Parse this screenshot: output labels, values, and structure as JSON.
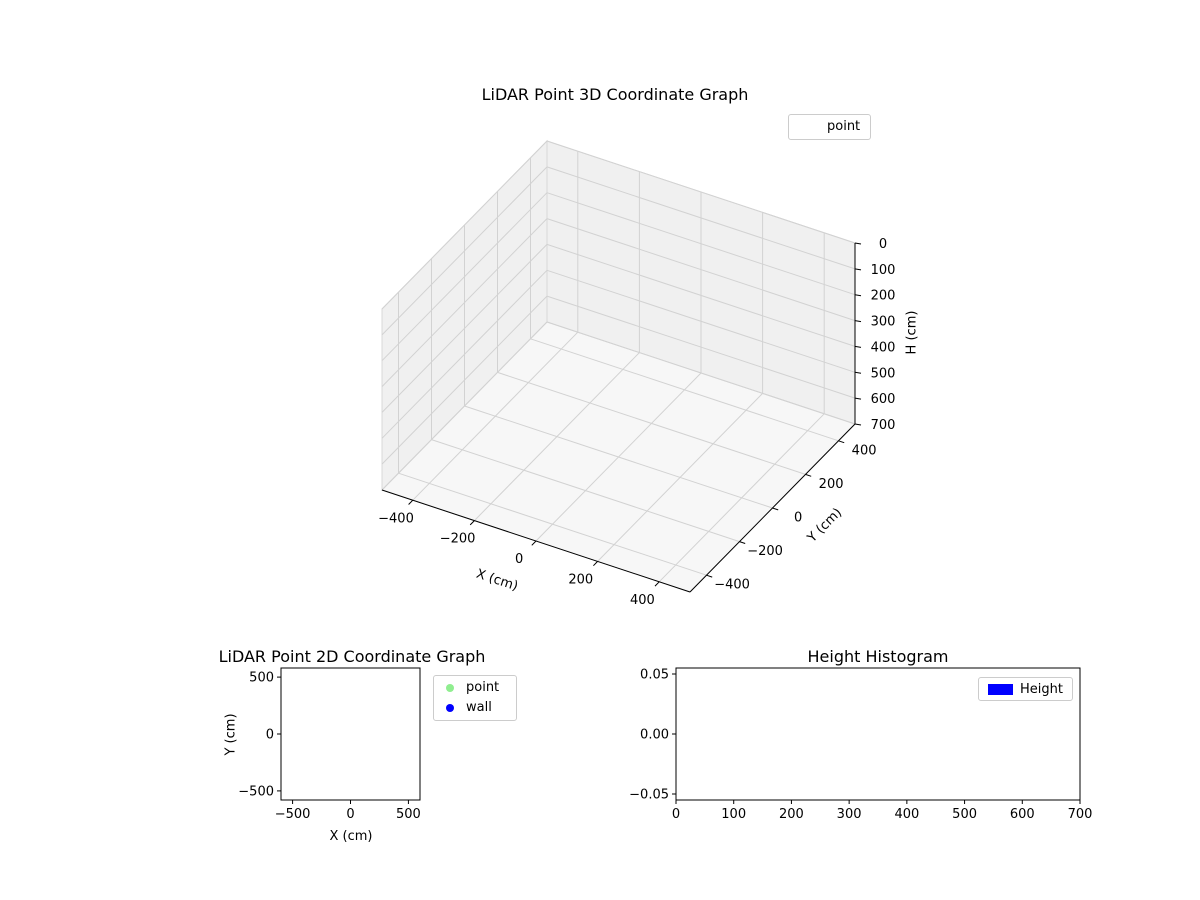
{
  "figure": {
    "background": "#ffffff"
  },
  "colors": {
    "pane": "#f0f0f0",
    "pane_floor": "#f7f7f7",
    "pane_edge": "#d9d9d9",
    "grid": "#d2d2d2",
    "axis": "#000000",
    "point": "#90ee90",
    "wall": "#0000ff",
    "height": "#0000ff"
  },
  "chart_data": [
    {
      "type": "scatter",
      "projection": "3d",
      "title": "LiDAR Point 3D Coordinate Graph",
      "xlabel": "X (cm)",
      "ylabel": "Y (cm)",
      "zlabel": "H (cm)",
      "xlim": [
        -500,
        500
      ],
      "ylim": [
        -500,
        500
      ],
      "zlim": [
        0,
        700
      ],
      "z_axis_inverted": true,
      "grid": true,
      "xticks": {
        "values": [
          -400,
          -200,
          0,
          200,
          400
        ],
        "labels": [
          "−400",
          "−200",
          "0",
          "200",
          "400"
        ]
      },
      "yticks": {
        "values": [
          -400,
          -200,
          0,
          200,
          400
        ],
        "labels": [
          "−400",
          "−200",
          "0",
          "200",
          "400"
        ]
      },
      "zticks": {
        "values": [
          0,
          100,
          200,
          300,
          400,
          500,
          600,
          700
        ],
        "labels": [
          "0",
          "100",
          "200",
          "300",
          "400",
          "500",
          "600",
          "700"
        ]
      },
      "legend": {
        "location": "upper right",
        "entries": [
          {
            "label": "point",
            "marker": "none"
          }
        ]
      },
      "series": [
        {
          "name": "point",
          "points": []
        }
      ]
    },
    {
      "type": "scatter",
      "projection": "2d",
      "title": "LiDAR Point 2D Coordinate Graph",
      "xlabel": "X (cm)",
      "ylabel": "Y (cm)",
      "xlim": [
        -600,
        600
      ],
      "ylim": [
        -580,
        580
      ],
      "grid": false,
      "xticks": {
        "values": [
          -500,
          0,
          500
        ],
        "labels": [
          "−500",
          "0",
          "500"
        ]
      },
      "yticks": {
        "values": [
          -500,
          0,
          500
        ],
        "labels": [
          "−500",
          "0",
          "500"
        ]
      },
      "legend": {
        "location": "outside upper right",
        "entries": [
          {
            "label": "point",
            "marker": "circle",
            "color": "#90ee90"
          },
          {
            "label": "wall",
            "marker": "circle",
            "color": "#0000ff"
          }
        ]
      },
      "series": [
        {
          "name": "point",
          "points": []
        },
        {
          "name": "wall",
          "points": []
        }
      ]
    },
    {
      "type": "bar",
      "title": "Height Histogram",
      "xlabel": "",
      "ylabel": "",
      "xlim": [
        0,
        700
      ],
      "ylim": [
        -0.055,
        0.055
      ],
      "grid": false,
      "xticks": {
        "values": [
          0,
          100,
          200,
          300,
          400,
          500,
          600,
          700
        ],
        "labels": [
          "0",
          "100",
          "200",
          "300",
          "400",
          "500",
          "600",
          "700"
        ]
      },
      "yticks": {
        "values": [
          -0.05,
          0,
          0.05
        ],
        "labels": [
          "−0.05",
          "0.00",
          "0.05"
        ]
      },
      "legend": {
        "location": "upper right",
        "entries": [
          {
            "label": "Height",
            "marker": "rect",
            "color": "#0000ff"
          }
        ]
      },
      "values": []
    }
  ]
}
